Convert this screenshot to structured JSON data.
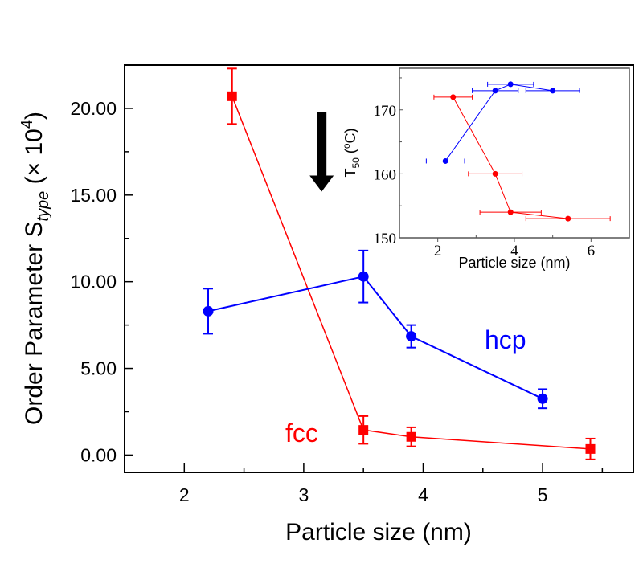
{
  "chart_data": [
    {
      "id": "main",
      "type": "line",
      "title": "",
      "xlabel": "Particle size (nm)",
      "ylabel": {
        "main": "Order Parameter S",
        "subscript": "type",
        "suffix": " (× 10",
        "superscript": "4",
        "close": ")"
      },
      "xlim": [
        1.5,
        5.76
      ],
      "ylim": [
        -1.0,
        22.5
      ],
      "xticks": [
        2,
        3,
        4,
        5
      ],
      "xtick_labels": [
        "2",
        "3",
        "4",
        "5"
      ],
      "yticks": [
        0,
        5,
        10,
        15,
        20
      ],
      "ytick_labels": [
        "0.00",
        "5.00",
        "10.00",
        "15.00",
        "20.00"
      ],
      "grid": false,
      "series": [
        {
          "name": "fcc",
          "color": "#ff0000",
          "marker": "square",
          "x": [
            2.4,
            3.5,
            3.9,
            5.4
          ],
          "y": [
            20.7,
            1.45,
            1.05,
            0.35
          ],
          "yerr": [
            1.6,
            0.8,
            0.55,
            0.6
          ]
        },
        {
          "name": "hcp",
          "color": "#0000ff",
          "marker": "circle",
          "x": [
            2.2,
            3.5,
            3.9,
            5.0
          ],
          "y": [
            8.3,
            10.3,
            6.85,
            3.25
          ],
          "yerr": [
            1.3,
            1.5,
            0.65,
            0.55
          ]
        }
      ],
      "annotations": [
        {
          "text": "fcc",
          "color": "#ff0000",
          "x": 3.1,
          "y": 1.2
        },
        {
          "text": "hcp",
          "color": "#0000ff",
          "x": 4.6,
          "y": 6.3
        },
        {
          "type": "arrow-down",
          "color": "#000000",
          "x": 3.15,
          "y_from": 19.8,
          "y_to": 15.2
        }
      ]
    },
    {
      "id": "inset",
      "type": "line",
      "title": "",
      "xlabel": "Particle size (nm)",
      "ylabel": {
        "main": "T",
        "subscript": "50",
        "unit": " (",
        "degree": "o",
        "unit_end": "C)"
      },
      "xlim": [
        1.0,
        7.0
      ],
      "ylim": [
        150,
        176.5
      ],
      "xticks": [
        2,
        4,
        6
      ],
      "xtick_labels": [
        "2",
        "4",
        "6"
      ],
      "yticks": [
        150,
        160,
        170
      ],
      "ytick_labels": [
        "150",
        "160",
        "170"
      ],
      "grid": false,
      "series": [
        {
          "name": "fcc",
          "color": "#ff0000",
          "marker": "circle",
          "x": [
            2.4,
            3.5,
            3.9,
            5.4
          ],
          "y": [
            172,
            160,
            154,
            153
          ],
          "xerr": [
            0.5,
            0.7,
            0.8,
            1.1
          ]
        },
        {
          "name": "hcp",
          "color": "#0000ff",
          "marker": "circle",
          "x": [
            2.2,
            3.5,
            3.9,
            5.0
          ],
          "y": [
            162,
            173,
            174,
            173
          ],
          "xerr": [
            0.5,
            0.6,
            0.6,
            0.7
          ]
        }
      ]
    }
  ]
}
